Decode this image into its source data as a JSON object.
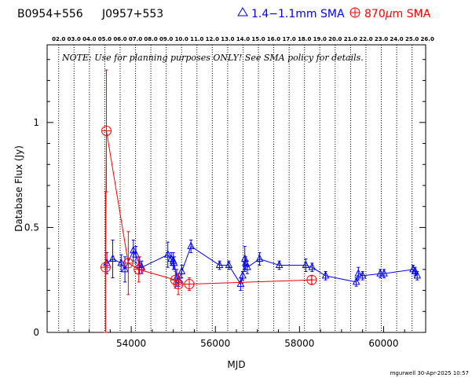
{
  "header": {
    "source_name": "B0954+556",
    "source_alt_name": "J0957+553",
    "legend_blue": "1.4−1.1mm SMA",
    "legend_red_pre": "870",
    "legend_red_mu": "μ",
    "legend_red_post": "m SMA"
  },
  "note": "NOTE: Use for planning purposes ONLY!  See SMA policy for details.",
  "footer": "mgurwell 30-Apr-2025 10:57",
  "colors": {
    "blue": "#0000ff",
    "red": "#ff0000",
    "axis": "#000000"
  },
  "chart_data": {
    "type": "scatter",
    "xlabel": "MJD",
    "ylabel": "Database Flux (Jy)",
    "xlim": [
      52000,
      61000
    ],
    "ylim": [
      0,
      1.37
    ],
    "x_ticks": [
      54000,
      56000,
      58000,
      60000
    ],
    "x_tick_labels": [
      "54000",
      "56000",
      "58000",
      "60000"
    ],
    "y_ticks": [
      0,
      0.5,
      1
    ],
    "y_tick_labels": [
      "0",
      "0.5",
      "1"
    ],
    "top_axis_years": [
      {
        "label": "02.0",
        "mjd": 52275
      },
      {
        "label": "03.0",
        "mjd": 52640
      },
      {
        "label": "04.0",
        "mjd": 53005
      },
      {
        "label": "05.0",
        "mjd": 53371
      },
      {
        "label": "06.0",
        "mjd": 53736
      },
      {
        "label": "07.0",
        "mjd": 54101
      },
      {
        "label": "08.0",
        "mjd": 54466
      },
      {
        "label": "09.0",
        "mjd": 54832
      },
      {
        "label": "10.0",
        "mjd": 55197
      },
      {
        "label": "11.0",
        "mjd": 55562
      },
      {
        "label": "12.0",
        "mjd": 55927
      },
      {
        "label": "13.0",
        "mjd": 56293
      },
      {
        "label": "14.0",
        "mjd": 56658
      },
      {
        "label": "15.0",
        "mjd": 57023
      },
      {
        "label": "16.0",
        "mjd": 57388
      },
      {
        "label": "17.0",
        "mjd": 57754
      },
      {
        "label": "18.0",
        "mjd": 58119
      },
      {
        "label": "19.0",
        "mjd": 58484
      },
      {
        "label": "20.0",
        "mjd": 58849
      },
      {
        "label": "21.0",
        "mjd": 59215
      },
      {
        "label": "22.0",
        "mjd": 59580
      },
      {
        "label": "23.0",
        "mjd": 59945
      },
      {
        "label": "24.0",
        "mjd": 60310
      },
      {
        "label": "25.0",
        "mjd": 60676
      },
      {
        "label": "26.0",
        "mjd": 61041
      }
    ],
    "grid": "vertical dotted lines at year boundaries",
    "legend_position": "top",
    "series": [
      {
        "name": "1.4−1.1mm SMA",
        "color": "#0000ff",
        "marker": "triangle",
        "points": [
          {
            "x": 53420,
            "y": 0.33,
            "err": 0.05
          },
          {
            "x": 53560,
            "y": 0.35,
            "err": 0.09
          },
          {
            "x": 53760,
            "y": 0.33,
            "err": 0.04
          },
          {
            "x": 53850,
            "y": 0.3,
            "err": 0.06
          },
          {
            "x": 54050,
            "y": 0.39,
            "err": 0.05
          },
          {
            "x": 54110,
            "y": 0.37,
            "err": 0.04
          },
          {
            "x": 54200,
            "y": 0.32,
            "err": 0.04
          },
          {
            "x": 54250,
            "y": 0.31,
            "err": 0.03
          },
          {
            "x": 54870,
            "y": 0.37,
            "err": 0.06
          },
          {
            "x": 54950,
            "y": 0.35,
            "err": 0.03
          },
          {
            "x": 55000,
            "y": 0.34,
            "err": 0.04
          },
          {
            "x": 55020,
            "y": 0.33,
            "err": 0.03
          },
          {
            "x": 55080,
            "y": 0.26,
            "err": 0.04
          },
          {
            "x": 55130,
            "y": 0.25,
            "err": 0.03
          },
          {
            "x": 55200,
            "y": 0.29,
            "err": 0.03
          },
          {
            "x": 55420,
            "y": 0.41,
            "err": 0.03
          },
          {
            "x": 56100,
            "y": 0.32,
            "err": 0.02
          },
          {
            "x": 56320,
            "y": 0.32,
            "err": 0.02
          },
          {
            "x": 56600,
            "y": 0.23,
            "err": 0.03
          },
          {
            "x": 56650,
            "y": 0.27,
            "err": 0.02
          },
          {
            "x": 56700,
            "y": 0.35,
            "err": 0.06
          },
          {
            "x": 56720,
            "y": 0.33,
            "err": 0.03
          },
          {
            "x": 56760,
            "y": 0.31,
            "err": 0.03
          },
          {
            "x": 57050,
            "y": 0.35,
            "err": 0.03
          },
          {
            "x": 57520,
            "y": 0.32,
            "err": 0.02
          },
          {
            "x": 58150,
            "y": 0.32,
            "err": 0.03
          },
          {
            "x": 58300,
            "y": 0.31,
            "err": 0.02
          },
          {
            "x": 58620,
            "y": 0.27,
            "err": 0.02
          },
          {
            "x": 59350,
            "y": 0.24,
            "err": 0.02
          },
          {
            "x": 59400,
            "y": 0.28,
            "err": 0.03
          },
          {
            "x": 59500,
            "y": 0.27,
            "err": 0.02
          },
          {
            "x": 59920,
            "y": 0.28,
            "err": 0.02
          },
          {
            "x": 60010,
            "y": 0.28,
            "err": 0.02
          },
          {
            "x": 60700,
            "y": 0.3,
            "err": 0.02
          },
          {
            "x": 60750,
            "y": 0.29,
            "err": 0.02
          },
          {
            "x": 60800,
            "y": 0.27,
            "err": 0.02
          }
        ]
      },
      {
        "name": "870μm SMA",
        "color": "#ff0000",
        "marker": "circle-plus",
        "points": [
          {
            "x": 53390,
            "y": 0.31,
            "err": 0.36
          },
          {
            "x": 53410,
            "y": 0.96,
            "err": 0.29
          },
          {
            "x": 53930,
            "y": 0.33,
            "err": 0.15
          },
          {
            "x": 54180,
            "y": 0.3,
            "err": 0.06
          },
          {
            "x": 55050,
            "y": 0.25,
            "err": 0.04
          },
          {
            "x": 55120,
            "y": 0.23,
            "err": 0.05
          },
          {
            "x": 55380,
            "y": 0.23,
            "err": 0.03
          },
          {
            "x": 58290,
            "y": 0.25,
            "err": 0.02
          }
        ]
      }
    ]
  }
}
